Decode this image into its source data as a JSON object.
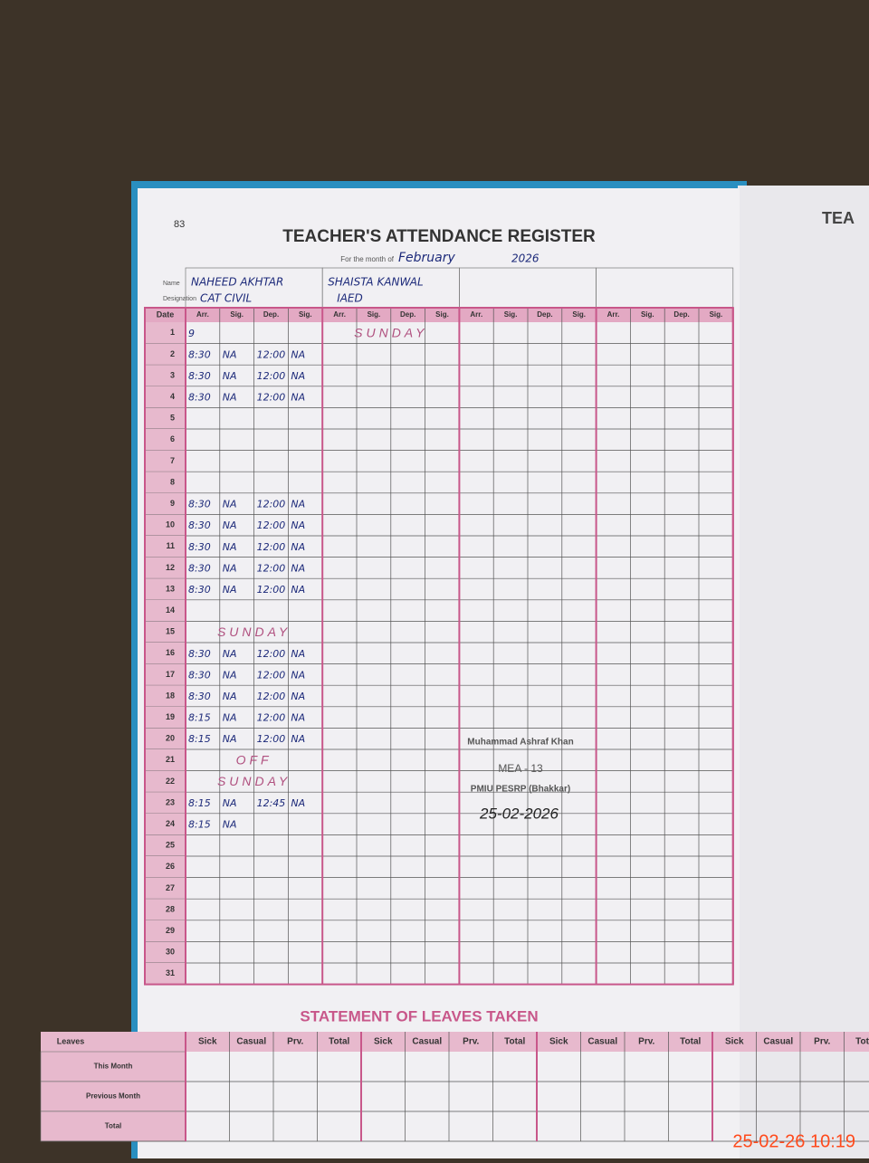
{
  "page_number": "83",
  "title": "TEACHER'S ATTENDANCE REGISTER",
  "month_label": "For the month of",
  "month": "February",
  "year": "2026",
  "name_label": "Name",
  "designation_label": "Designation",
  "date_header": "Date",
  "group_headers": [
    "Arr.",
    "Sig.",
    "Dep.",
    "Sig."
  ],
  "dates": [
    "1",
    "2",
    "3",
    "4",
    "5",
    "6",
    "7",
    "8",
    "9",
    "10",
    "11",
    "12",
    "13",
    "14",
    "15",
    "16",
    "17",
    "18",
    "19",
    "20",
    "21",
    "22",
    "23",
    "24",
    "25",
    "26",
    "27",
    "28",
    "29",
    "30",
    "31"
  ],
  "teachers": [
    {
      "name": "NAHEED AKHTAR",
      "designation": "CAT CIVIL",
      "rows": [
        [
          "9",
          null,
          null,
          null
        ],
        [
          "8:30",
          "NA",
          "12:00",
          "NA"
        ],
        [
          "8:30",
          "NA",
          "12:00",
          "NA"
        ],
        [
          "8:30",
          "NA",
          "12:00",
          "NA"
        ],
        null,
        null,
        null,
        null,
        [
          "8:30",
          "NA",
          "12:00",
          "NA"
        ],
        [
          "8:30",
          "NA",
          "12:00",
          "NA"
        ],
        [
          "8:30",
          "NA",
          "12:00",
          "NA"
        ],
        [
          "8:30",
          "NA",
          "12:00",
          "NA"
        ],
        [
          "8:30",
          "NA",
          "12:00",
          "NA"
        ],
        null,
        {
          "note": "SUNDAY"
        },
        [
          "8:30",
          "NA",
          "12:00",
          "NA"
        ],
        [
          "8:30",
          "NA",
          "12:00",
          "NA"
        ],
        [
          "8:30",
          "NA",
          "12:00",
          "NA"
        ],
        [
          "8:15",
          "NA",
          "12:00",
          "NA"
        ],
        [
          "8:15",
          "NA",
          "12:00",
          "NA"
        ],
        {
          "note": "OFF"
        },
        {
          "note": "SUNDAY"
        },
        [
          "8:15",
          "NA",
          "12:45",
          "NA"
        ],
        [
          "8:15",
          "NA",
          null,
          null
        ],
        null,
        null,
        null,
        null,
        null,
        null,
        null
      ]
    },
    {
      "name": "SHAISTA KANWAL",
      "designation": "IAED",
      "rows": [
        {
          "note": "SUNDAY"
        },
        null,
        null,
        null,
        null,
        null,
        null,
        null,
        null,
        null,
        null,
        null,
        null,
        null,
        null,
        null,
        null,
        null,
        null,
        null,
        null,
        null,
        null,
        null,
        null,
        null,
        null,
        null,
        null,
        null,
        null
      ]
    }
  ],
  "stamp": {
    "name": "Muhammad Ashraf Khan",
    "title": "MEA - 13",
    "office": "PMIU PESRP (Bhakkar)",
    "date": "25-02-2026"
  },
  "leaves": {
    "title": "STATEMENT OF LEAVES TAKEN",
    "corner": "Leaves",
    "headers": [
      "Sick",
      "Casual",
      "Prv.",
      "Total"
    ],
    "rows": [
      "This Month",
      "Previous Month",
      "Total"
    ]
  },
  "facing_page_title": "TEA",
  "timestamp": "25-02-26  10:19"
}
